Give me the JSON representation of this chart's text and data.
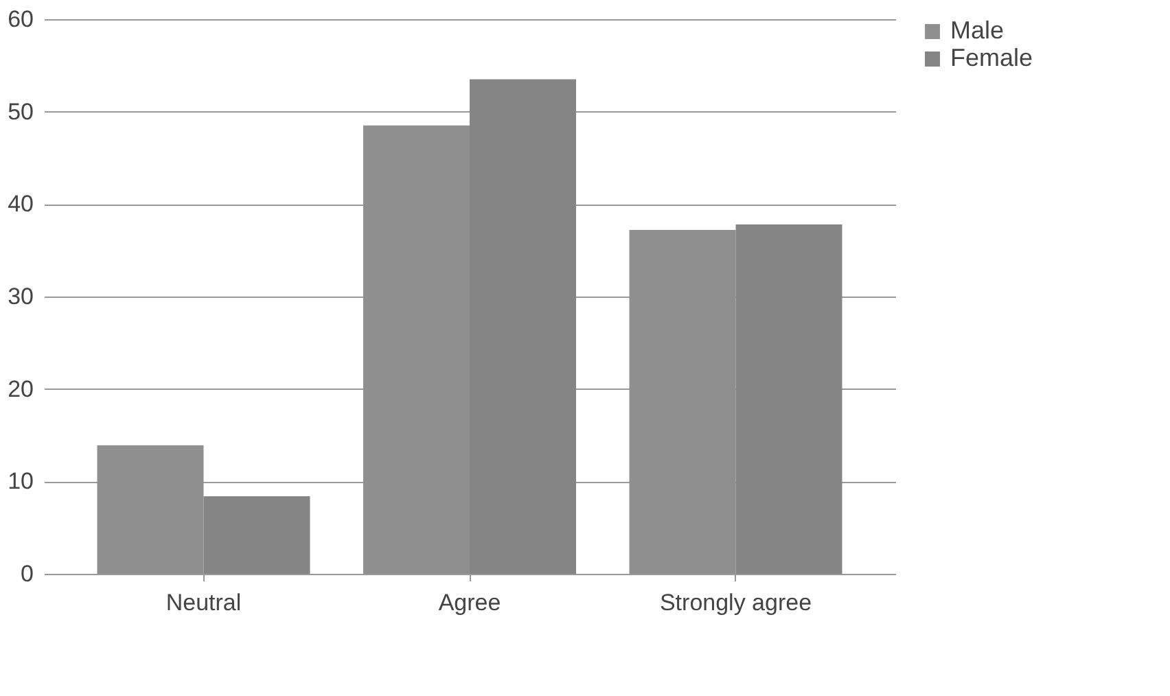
{
  "chart_data": {
    "type": "bar",
    "categories": [
      "Neutral",
      "Agree",
      "Strongly agree"
    ],
    "series": [
      {
        "name": "Male",
        "color": "#8f8f8f",
        "values": [
          13.9,
          48.5,
          37.2
        ]
      },
      {
        "name": "Female",
        "color": "#858585",
        "values": [
          8.4,
          53.5,
          37.8
        ]
      }
    ],
    "ylim": [
      0,
      60
    ],
    "yticks": [
      0,
      10,
      20,
      30,
      40,
      50,
      60
    ],
    "grid": "y",
    "legend": "right"
  }
}
